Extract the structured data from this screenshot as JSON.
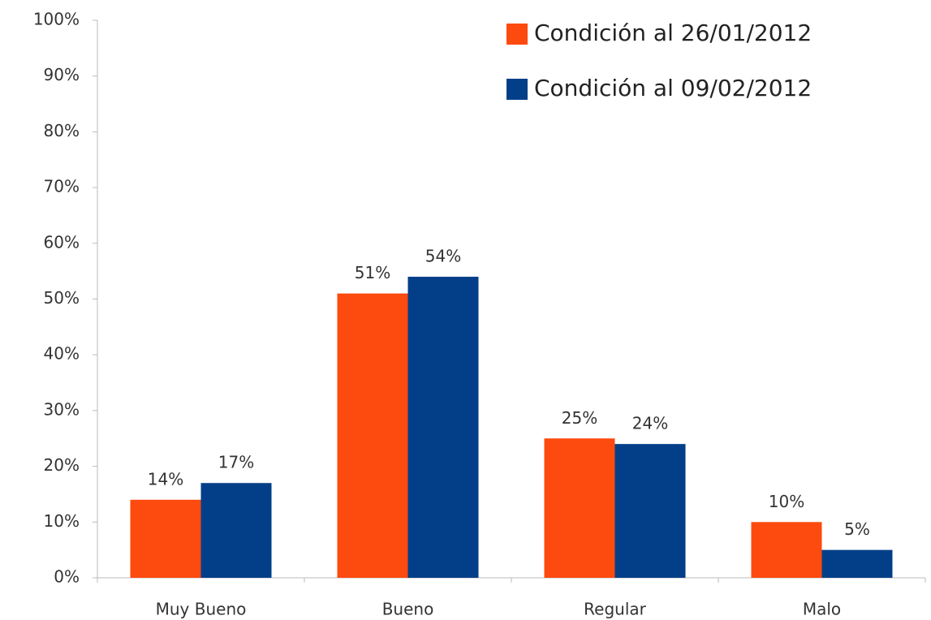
{
  "chart_data": {
    "type": "bar",
    "categories": [
      "Muy Bueno",
      "Bueno",
      "Regular",
      "Malo"
    ],
    "series": [
      {
        "name": "Condición al 26/01/2012",
        "color": "#fd4a0e",
        "values": [
          14,
          51,
          25,
          10
        ],
        "value_labels": [
          "14%",
          "51%",
          "25%",
          "10%"
        ]
      },
      {
        "name": "Condición al 09/02/2012",
        "color": "#023f88",
        "values": [
          17,
          54,
          24,
          5
        ],
        "value_labels": [
          "17%",
          "54%",
          "24%",
          "5%"
        ]
      }
    ],
    "ylim": [
      0,
      100
    ],
    "yticks": [
      {
        "value": 0,
        "label": "0%"
      },
      {
        "value": 10,
        "label": "10%"
      },
      {
        "value": 20,
        "label": "20%"
      },
      {
        "value": 30,
        "label": "30%"
      },
      {
        "value": 40,
        "label": "40%"
      },
      {
        "value": 50,
        "label": "50%"
      },
      {
        "value": 60,
        "label": "60%"
      },
      {
        "value": 70,
        "label": "70%"
      },
      {
        "value": 80,
        "label": "80%"
      },
      {
        "value": 90,
        "label": "90%"
      },
      {
        "value": 100,
        "label": "100%"
      }
    ],
    "grid": false,
    "legend": "upper right"
  }
}
